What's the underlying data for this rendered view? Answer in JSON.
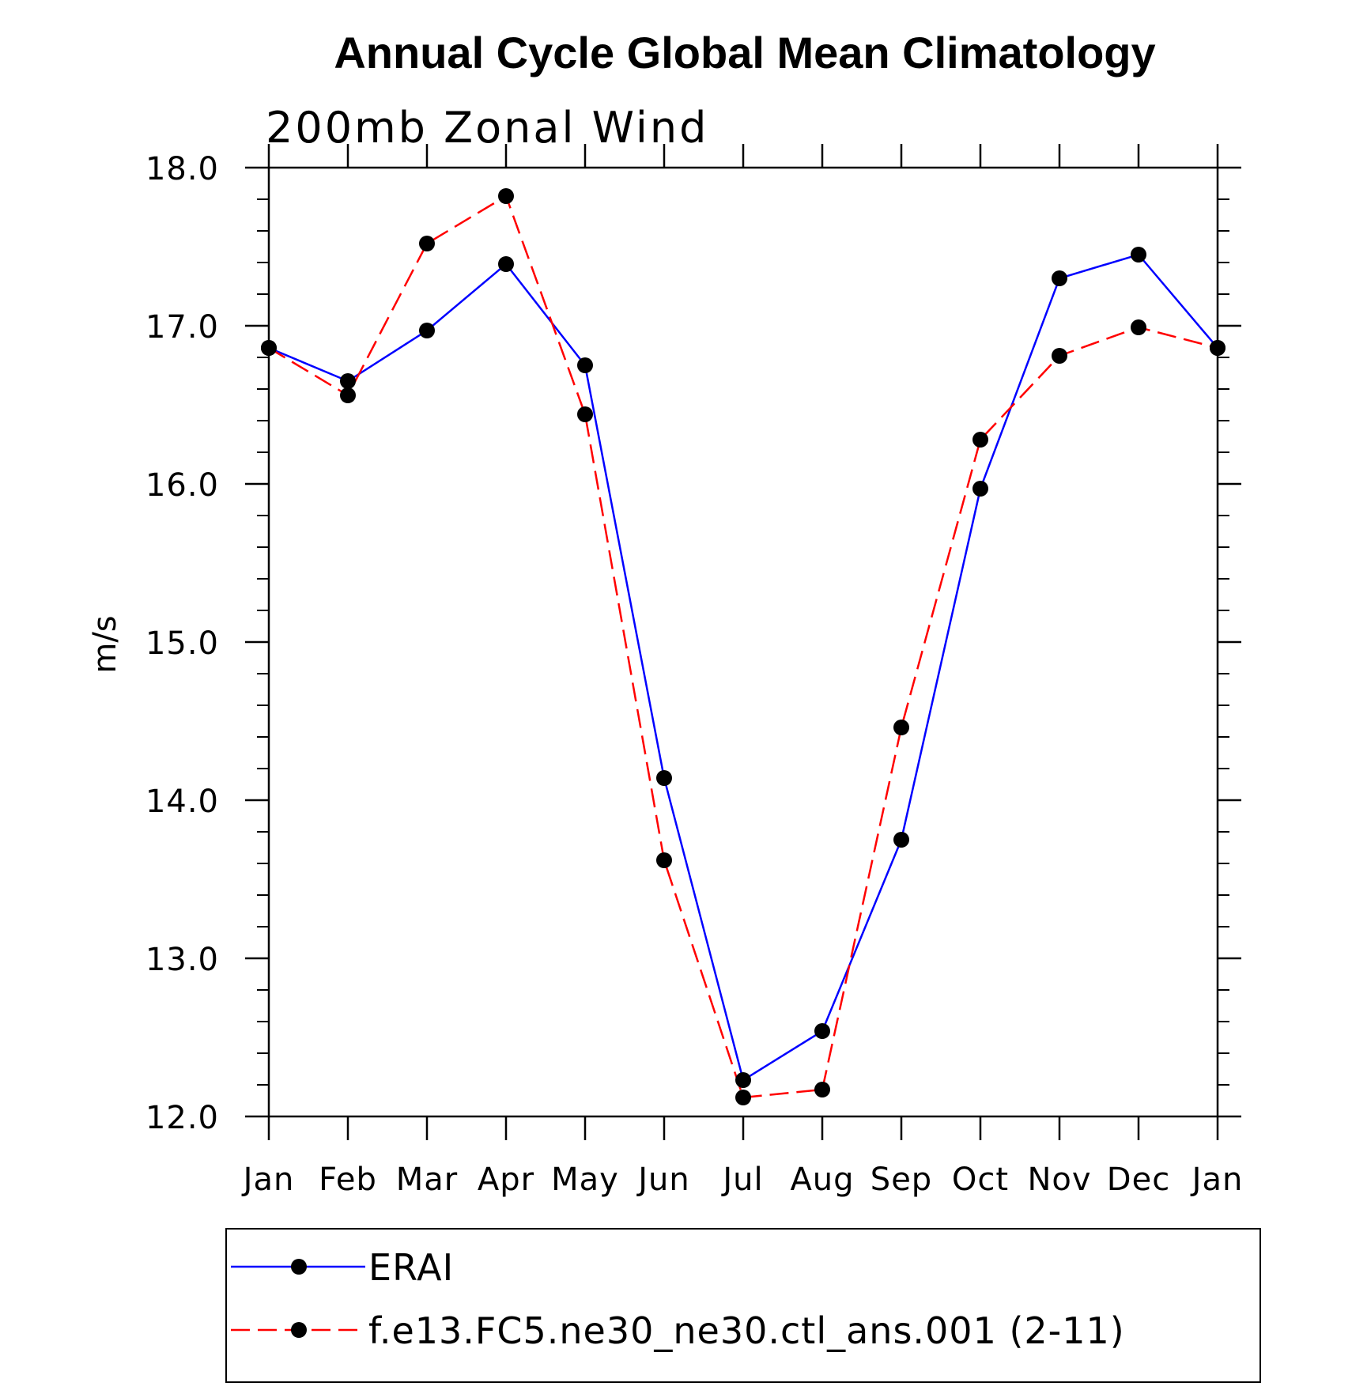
{
  "chart_data": {
    "type": "line",
    "title": "Annual Cycle Global Mean Climatology",
    "subtitle": "200mb  Zonal  Wind",
    "xlabel": "",
    "ylabel": "m/s",
    "categories": [
      "Jan",
      "Feb",
      "Mar",
      "Apr",
      "May",
      "Jun",
      "Jul",
      "Aug",
      "Sep",
      "Oct",
      "Nov",
      "Dec",
      "Jan"
    ],
    "ylim": [
      12.0,
      18.0
    ],
    "yticks_major": [
      "12.0",
      "13.0",
      "14.0",
      "15.0",
      "16.0",
      "17.0",
      "18.0"
    ],
    "legend_position": "bottom",
    "grid": false,
    "series": [
      {
        "name": "ERAI",
        "color": "#0000ff",
        "dash": "solid",
        "values": [
          16.86,
          16.65,
          16.97,
          17.39,
          16.75,
          14.14,
          12.23,
          12.54,
          13.75,
          15.97,
          17.3,
          17.45,
          16.86
        ]
      },
      {
        "name": "f.e13.FC5.ne30_ne30.ctl_ans.001 (2-11)",
        "color": "#ff0000",
        "dash": "dashed",
        "values": [
          16.86,
          16.56,
          17.52,
          17.82,
          16.44,
          13.62,
          12.12,
          12.17,
          14.46,
          16.28,
          16.81,
          16.99,
          16.86
        ]
      }
    ]
  }
}
